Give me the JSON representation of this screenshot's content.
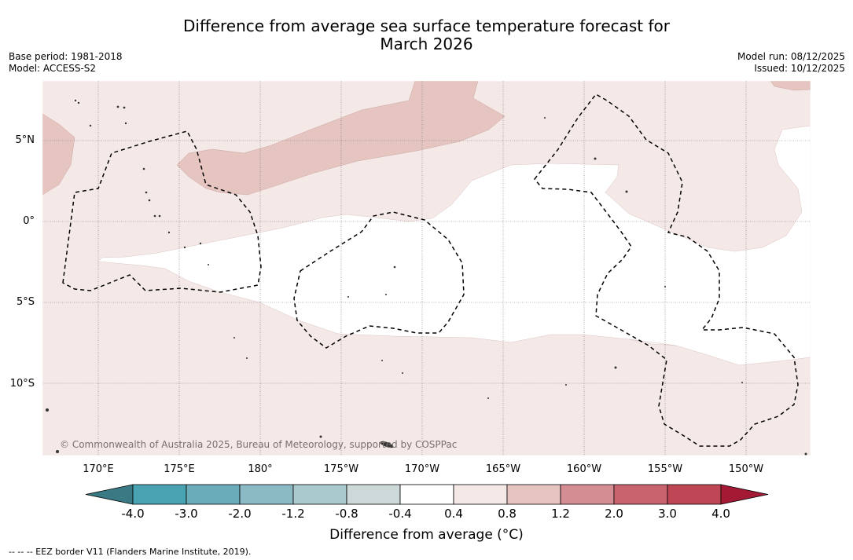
{
  "header": {
    "title_line1": "Difference from average sea surface temperature forecast for",
    "title_line2": "March 2026",
    "base_period": "Base period: 1981-2018",
    "model": "Model: ACCESS-S2",
    "model_run": "Model run: 08/12/2025",
    "issued": "Issued: 10/12/2025"
  },
  "map": {
    "copyright": "© Commonwealth of Australia 2025, Bureau of Meteorology, supported by COSPPac",
    "lat_labels": [
      "5°N",
      "0°",
      "5°S",
      "10°S"
    ],
    "lon_labels": [
      "170°E",
      "175°E",
      "180°",
      "175°W",
      "170°W",
      "165°W",
      "160°W",
      "155°W",
      "150°W"
    ],
    "colors": {
      "band_0_4_0_8": "#f5e9e8",
      "band_0_8_1_2": "#e6c5c1",
      "neutral": "#ffffff",
      "eez_line": "#000000",
      "grid": "#555555"
    }
  },
  "colorbar": {
    "title": "Difference from average (°C)",
    "labels": [
      "-4.0",
      "-3.0",
      "-2.0",
      "-1.2",
      "-0.8",
      "-0.4",
      "0.4",
      "0.8",
      "1.2",
      "2.0",
      "3.0",
      "4.0"
    ],
    "colors": [
      "#3a7a84",
      "#4aa3b3",
      "#6aacba",
      "#8bb9c4",
      "#aac9cc",
      "#cdd8d8",
      "#ffffff",
      "#f5e9e8",
      "#e6c5c1",
      "#d48d93",
      "#c9636d",
      "#bf4655",
      "#a41a35"
    ]
  },
  "footnote": "--  --  -- EEZ border V11 (Flanders Marine Institute, 2019)."
}
